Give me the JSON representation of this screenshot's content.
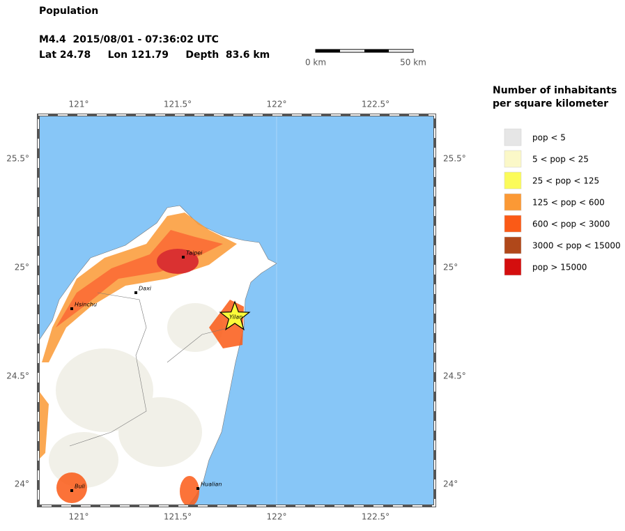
{
  "header": {
    "title": "Population",
    "event_line": "M4.4  2015/08/01 - 07:36:02 UTC",
    "location_line": "Lat 24.78     Lon 121.79     Depth  83.6 km"
  },
  "scale_bar": {
    "start_label": "0 km",
    "end_label": "50 km"
  },
  "map": {
    "lon_ticks": [
      "121°",
      "121.5°",
      "122°",
      "122.5°"
    ],
    "lat_ticks": [
      "25.5°",
      "25°",
      "24.5°",
      "24°"
    ]
  },
  "cities": [
    {
      "name": "Taipei"
    },
    {
      "name": "Daxi"
    },
    {
      "name": "Hsinchu"
    },
    {
      "name": "Yilan"
    },
    {
      "name": "Buli"
    },
    {
      "name": "Hualian"
    }
  ],
  "legend": {
    "title_line1": "Number of inhabitants",
    "title_line2": "per square kilometer",
    "items": [
      {
        "label": "pop < 5",
        "color": "#e6e6e6"
      },
      {
        "label": "5 < pop < 25",
        "color": "#fbf8c8"
      },
      {
        "label": "25 < pop < 125",
        "color": "#fbfb5a"
      },
      {
        "label": "125 < pop < 600",
        "color": "#fb9935"
      },
      {
        "label": "600 < pop < 3000",
        "color": "#fb5a16"
      },
      {
        "label": "3000 < pop < 15000",
        "color": "#b0481a"
      },
      {
        "label": "pop > 15000",
        "color": "#d40e0e"
      }
    ]
  }
}
